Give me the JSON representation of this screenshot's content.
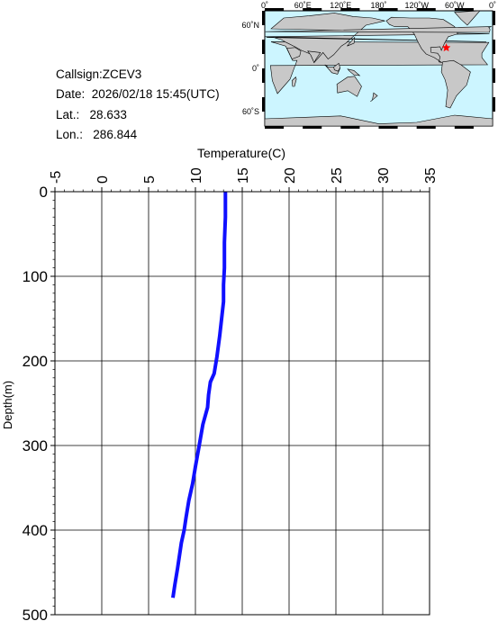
{
  "station": {
    "callsign": "Callsign:ZCEV3",
    "date_label": "Date:",
    "date_value": "2026/02/18 15:45(UTC)",
    "lat_label": "Lat.:",
    "lat_value": "28.633",
    "lon_label": "Lon.:",
    "lon_value": "286.844"
  },
  "map": {
    "lon_ticks": [
      "0˚",
      "60˚E",
      "120˚E",
      "180˚",
      "120˚W",
      "60˚W",
      "0˚"
    ],
    "lat_ticks": [
      "60˚N",
      "0˚",
      "60˚S"
    ],
    "marker": {
      "lon": 286.844,
      "lat": 28.633,
      "color": "#ff0000"
    },
    "ocean_color": "#ccf5ff",
    "land_color": "#c8c8c8"
  },
  "chart_data": {
    "type": "line",
    "xlabel": "Temperature(C)",
    "ylabel": "Depth(m)",
    "xlim": [
      -5,
      35
    ],
    "ylim": [
      500,
      0
    ],
    "x_ticks": [
      -5,
      0,
      5,
      10,
      15,
      20,
      25,
      30,
      35
    ],
    "y_ticks": [
      0,
      100,
      200,
      300,
      400,
      500
    ],
    "grid": true,
    "line_color": "#1010ff",
    "series": [
      {
        "x": [
          13.2,
          13.2,
          13.1,
          13.1,
          13.0,
          13.0,
          12.8,
          12.6,
          12.3,
          12.0,
          11.6,
          11.4,
          11.3,
          10.8,
          10.4,
          10.0,
          9.7,
          9.3,
          9.0,
          8.8,
          8.5,
          8.3,
          8.1,
          7.8,
          7.6
        ],
        "y": [
          0,
          30,
          60,
          90,
          110,
          130,
          150,
          170,
          195,
          215,
          225,
          240,
          255,
          275,
          300,
          325,
          345,
          365,
          385,
          400,
          415,
          430,
          445,
          465,
          480
        ]
      }
    ]
  }
}
